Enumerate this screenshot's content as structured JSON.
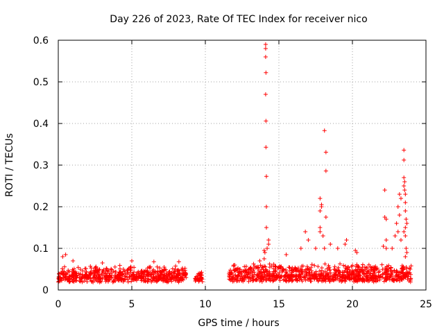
{
  "chart_data": {
    "type": "scatter",
    "title": "Day 226 of 2023, Rate Of TEC Index for receiver nico",
    "xlabel": "GPS time / hours",
    "ylabel": "ROTI / TECUs",
    "xlim": [
      0,
      25
    ],
    "ylim": [
      0,
      0.6
    ],
    "x_ticks": [
      0,
      5,
      10,
      15,
      20,
      25
    ],
    "y_ticks": [
      0,
      0.1,
      0.2,
      0.3,
      0.4,
      0.5,
      0.6
    ],
    "x_tick_labels": [
      "0",
      "5",
      "10",
      "15",
      "20",
      "25"
    ],
    "y_tick_labels": [
      "0",
      "0.1",
      "0.2",
      "0.3",
      "0.4",
      "0.5",
      "0.6"
    ],
    "grid": true,
    "marker": "+",
    "marker_color": "#ff0000",
    "band_segments": [
      {
        "x_start": 0.0,
        "x_end": 8.7,
        "y_min": 0.01,
        "y_max": 0.065
      },
      {
        "x_start": 9.3,
        "x_end": 9.8,
        "y_min": 0.015,
        "y_max": 0.05
      },
      {
        "x_start": 11.6,
        "x_end": 24.0,
        "y_min": 0.01,
        "y_max": 0.07
      }
    ],
    "outliers": [
      [
        0.3,
        0.08
      ],
      [
        0.5,
        0.085
      ],
      [
        1.0,
        0.07
      ],
      [
        3.0,
        0.065
      ],
      [
        5.0,
        0.07
      ],
      [
        6.5,
        0.068
      ],
      [
        8.2,
        0.068
      ],
      [
        9.8,
        0.02
      ],
      [
        12.0,
        0.06
      ],
      [
        13.7,
        0.07
      ],
      [
        14.0,
        0.095
      ],
      [
        14.0,
        0.075
      ],
      [
        14.05,
        0.09
      ],
      [
        14.1,
        0.59
      ],
      [
        14.1,
        0.58
      ],
      [
        14.1,
        0.56
      ],
      [
        14.12,
        0.522
      ],
      [
        14.1,
        0.47
      ],
      [
        14.12,
        0.406
      ],
      [
        14.12,
        0.343
      ],
      [
        14.15,
        0.273
      ],
      [
        14.15,
        0.2
      ],
      [
        14.15,
        0.15
      ],
      [
        14.3,
        0.12
      ],
      [
        14.3,
        0.11
      ],
      [
        14.2,
        0.1
      ],
      [
        15.5,
        0.085
      ],
      [
        16.5,
        0.1
      ],
      [
        16.8,
        0.14
      ],
      [
        17.0,
        0.12
      ],
      [
        17.5,
        0.1
      ],
      [
        17.8,
        0.22
      ],
      [
        17.9,
        0.205
      ],
      [
        17.9,
        0.2
      ],
      [
        17.8,
        0.19
      ],
      [
        17.8,
        0.15
      ],
      [
        17.8,
        0.14
      ],
      [
        18.0,
        0.13
      ],
      [
        18.1,
        0.383
      ],
      [
        18.2,
        0.331
      ],
      [
        18.2,
        0.286
      ],
      [
        18.2,
        0.175
      ],
      [
        18.1,
        0.1
      ],
      [
        18.5,
        0.11
      ],
      [
        19.0,
        0.1
      ],
      [
        19.5,
        0.11
      ],
      [
        19.6,
        0.12
      ],
      [
        20.2,
        0.095
      ],
      [
        20.3,
        0.09
      ],
      [
        22.2,
        0.24
      ],
      [
        22.2,
        0.175
      ],
      [
        22.3,
        0.17
      ],
      [
        22.3,
        0.12
      ],
      [
        22.1,
        0.105
      ],
      [
        22.3,
        0.1
      ],
      [
        22.7,
        0.1
      ],
      [
        22.9,
        0.13
      ],
      [
        23.0,
        0.16
      ],
      [
        23.1,
        0.14
      ],
      [
        23.1,
        0.2
      ],
      [
        23.2,
        0.23
      ],
      [
        23.3,
        0.22
      ],
      [
        23.2,
        0.18
      ],
      [
        23.3,
        0.12
      ],
      [
        23.5,
        0.336
      ],
      [
        23.5,
        0.312
      ],
      [
        23.5,
        0.27
      ],
      [
        23.55,
        0.26
      ],
      [
        23.5,
        0.25
      ],
      [
        23.55,
        0.24
      ],
      [
        23.6,
        0.23
      ],
      [
        23.6,
        0.21
      ],
      [
        23.6,
        0.19
      ],
      [
        23.65,
        0.17
      ],
      [
        23.6,
        0.15
      ],
      [
        23.7,
        0.16
      ],
      [
        23.5,
        0.14
      ],
      [
        23.6,
        0.13
      ],
      [
        23.65,
        0.1
      ],
      [
        23.7,
        0.09
      ],
      [
        23.6,
        0.08
      ]
    ]
  }
}
